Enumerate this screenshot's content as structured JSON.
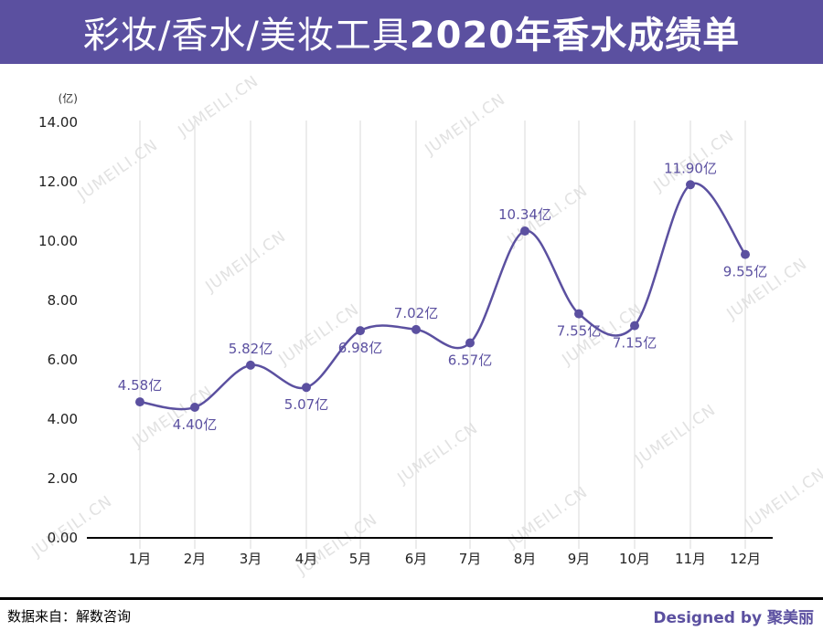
{
  "header": {
    "title_regular": "彩妆/香水/美妆工具",
    "title_bold": "2020年香水成绩单"
  },
  "watermark_text": "JUMEILI.CN",
  "colors": {
    "header_bg": "#5b50a0",
    "series": "#5b50a0",
    "grid": "#d9d9d9",
    "axis": "#000000"
  },
  "chart_data": {
    "type": "line",
    "smooth": true,
    "unit_label": "(亿)",
    "categories": [
      "1月",
      "2月",
      "3月",
      "4月",
      "5月",
      "6月",
      "7月",
      "8月",
      "9月",
      "10月",
      "11月",
      "12月"
    ],
    "series": [
      {
        "values": [
          4.58,
          4.4,
          5.82,
          5.07,
          6.98,
          7.02,
          6.57,
          10.34,
          7.55,
          7.15,
          11.9,
          9.55
        ],
        "labels": [
          "4.58亿",
          "4.40亿",
          "5.82亿",
          "5.07亿",
          "6.98亿",
          "7.02亿",
          "6.57亿",
          "10.34亿",
          "7.55亿",
          "7.15亿",
          "11.90亿",
          "9.55亿"
        ]
      }
    ],
    "ylim": [
      0,
      14
    ],
    "yticks": [
      "0.00",
      "2.00",
      "4.00",
      "6.00",
      "8.00",
      "10.00",
      "12.00",
      "14.00"
    ],
    "grid": "vertical",
    "legend": "none"
  },
  "footer": {
    "source": "数据来自：解数咨询",
    "credit": "Designed by 聚美丽"
  }
}
